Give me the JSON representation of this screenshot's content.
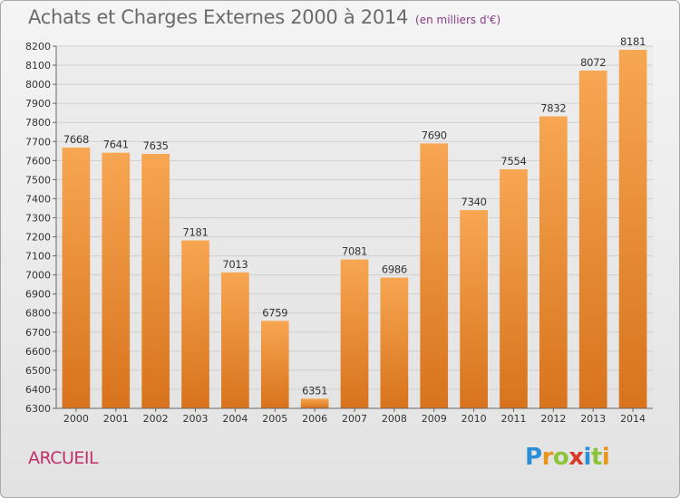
{
  "header": {
    "title": "Achats et Charges Externes 2000 à 2014",
    "subtitle": "(en milliers d'€)"
  },
  "footer": {
    "city": "ARCUEIL",
    "logo_text": "Proxiti",
    "logo_letters": [
      {
        "ch": "P",
        "color": "#2a8fd6"
      },
      {
        "ch": "r",
        "color": "#e8951c"
      },
      {
        "ch": "o",
        "color": "#8cc43c"
      },
      {
        "ch": "x",
        "color": "#d83a2a"
      },
      {
        "ch": "i",
        "color": "#2a8fd6"
      },
      {
        "ch": "t",
        "color": "#8cc43c"
      },
      {
        "ch": "i",
        "color": "#e8951c"
      }
    ]
  },
  "chart_data": {
    "type": "bar",
    "title": "Achats et Charges Externes 2000 à 2014",
    "subtitle": "(en milliers d'€)",
    "xlabel": "",
    "ylabel": "",
    "categories": [
      "2000",
      "2001",
      "2002",
      "2003",
      "2004",
      "2005",
      "2006",
      "2007",
      "2008",
      "2009",
      "2010",
      "2011",
      "2012",
      "2013",
      "2014"
    ],
    "values": [
      7668,
      7641,
      7635,
      7181,
      7013,
      6759,
      6351,
      7081,
      6986,
      7690,
      7340,
      7554,
      7832,
      8072,
      8181
    ],
    "data_labels": [
      "7668",
      "7641",
      "7635",
      "7181",
      "7013",
      "6759",
      "6351",
      "7081",
      "6986",
      "7690",
      "7340",
      "7554",
      "7832",
      "8072",
      "8181"
    ],
    "ylim": [
      6300,
      8200
    ],
    "yticks": [
      6300,
      6400,
      6500,
      6600,
      6700,
      6800,
      6900,
      7000,
      7100,
      7200,
      7300,
      7400,
      7500,
      7600,
      7700,
      7800,
      7900,
      8000,
      8100,
      8200
    ],
    "grid": true,
    "bar_color_top": "#f7a652",
    "bar_color_bottom": "#d8731c"
  }
}
